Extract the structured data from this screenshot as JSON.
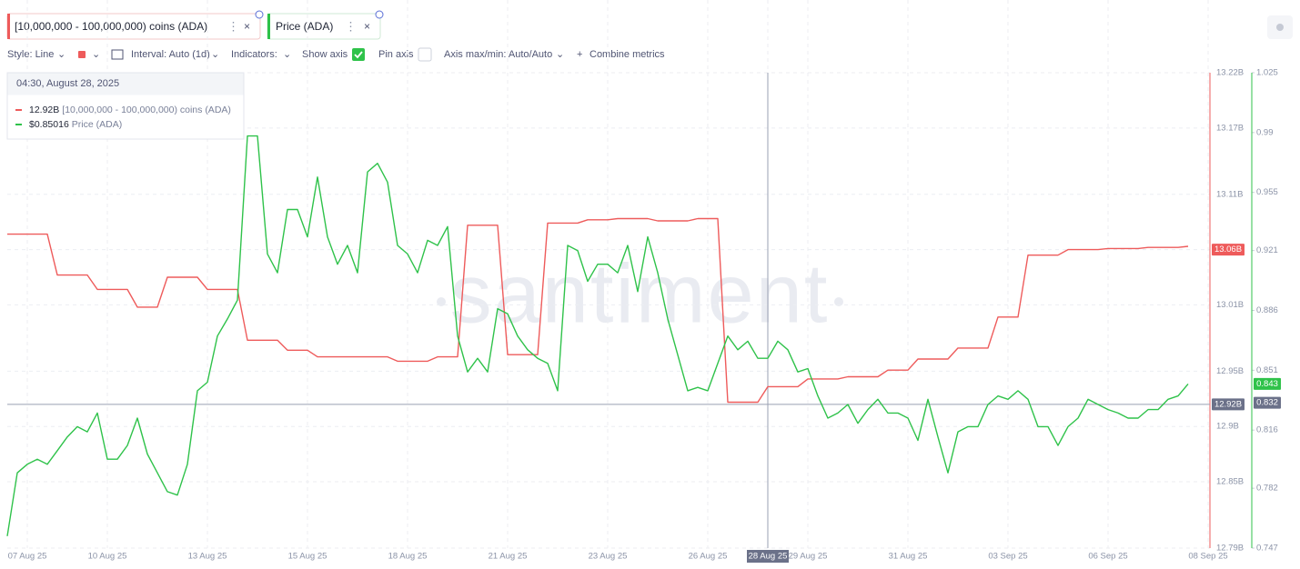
{
  "toolbar": {
    "style": "Style: Line",
    "interval": "Interval: Auto (1d)",
    "indicators": "Indicators:",
    "show_axis": "Show axis",
    "pin_axis": "Pin axis",
    "axis_minmax": "Axis max/min: Auto/Auto",
    "combine": "Combine metrics"
  },
  "chart_data": {
    "type": "line",
    "categories": [
      null,
      null,
      "07 Aug 25",
      null,
      null,
      null,
      null,
      null,
      null,
      null,
      "10 Aug 25",
      null,
      null,
      null,
      null,
      null,
      null,
      null,
      null,
      null,
      "13 Aug 25",
      null,
      null,
      null,
      null,
      null,
      null,
      null,
      null,
      null,
      "15 Aug 25",
      null,
      null,
      null,
      null,
      null,
      null,
      null,
      null,
      null,
      "18 Aug 25",
      null,
      null,
      null,
      null,
      null,
      null,
      null,
      null,
      null,
      "21 Aug 25",
      null,
      null,
      null,
      null,
      null,
      null,
      null,
      null,
      null,
      "23 Aug 25",
      null,
      null,
      null,
      null,
      null,
      null,
      null,
      null,
      null,
      "26 Aug 25",
      null,
      null,
      null,
      null,
      null,
      "28 Aug 25",
      null,
      null,
      null,
      "29 Aug 25",
      null,
      null,
      null,
      null,
      null,
      null,
      null,
      null,
      null,
      "31 Aug 25",
      null,
      null,
      null,
      null,
      null,
      null,
      null,
      null,
      null,
      "03 Sep 25",
      null,
      null,
      null,
      null,
      null,
      null,
      null,
      null,
      null,
      "06 Sep 25",
      null,
      null,
      null,
      null,
      null,
      null,
      null,
      null,
      null,
      "08 Sep 25"
    ],
    "series": [
      {
        "name": "[10,000,000 - 100,000,000) coins (ADA)",
        "color": "#ee5b5b",
        "axis": "y",
        "last_value": {
          "value": 13.06,
          "label": "13.06B"
        },
        "values": [
          13.074,
          13.074,
          13.074,
          13.074,
          13.074,
          13.037,
          13.037,
          13.037,
          13.037,
          13.024,
          13.024,
          13.024,
          13.024,
          13.008,
          13.008,
          13.008,
          13.035,
          13.035,
          13.035,
          13.035,
          13.024,
          13.024,
          13.024,
          13.024,
          12.978,
          12.978,
          12.978,
          12.978,
          12.969,
          12.969,
          12.969,
          12.963,
          12.963,
          12.963,
          12.963,
          12.963,
          12.963,
          12.963,
          12.963,
          12.959,
          12.959,
          12.959,
          12.959,
          12.963,
          12.963,
          12.963,
          13.082,
          13.082,
          13.082,
          13.082,
          12.965,
          12.965,
          12.965,
          12.965,
          13.084,
          13.084,
          13.084,
          13.084,
          13.087,
          13.087,
          13.087,
          13.088,
          13.088,
          13.088,
          13.088,
          13.086,
          13.086,
          13.086,
          13.086,
          13.088,
          13.088,
          13.088,
          12.922,
          12.922,
          12.922,
          12.922,
          12.936,
          12.936,
          12.936,
          12.936,
          12.943,
          12.943,
          12.943,
          12.943,
          12.945,
          12.945,
          12.945,
          12.945,
          12.951,
          12.951,
          12.951,
          12.961,
          12.961,
          12.961,
          12.961,
          12.971,
          12.971,
          12.971,
          12.971,
          12.999,
          12.999,
          12.999,
          13.055,
          13.055,
          13.055,
          13.055,
          13.06,
          13.06,
          13.06,
          13.06,
          13.061,
          13.061,
          13.061,
          13.061,
          13.062,
          13.062,
          13.062,
          13.062,
          13.063,
          null,
          null
        ]
      },
      {
        "name": "Price (ADA)",
        "color": "#2fc24a",
        "axis": "y2",
        "last_value": 0.843,
        "values": [
          0.754,
          0.791,
          0.796,
          0.799,
          0.796,
          0.804,
          0.812,
          0.818,
          0.815,
          0.826,
          0.799,
          0.799,
          0.807,
          0.823,
          0.802,
          0.791,
          0.78,
          0.778,
          0.796,
          0.839,
          0.844,
          0.871,
          0.881,
          0.892,
          0.988,
          0.988,
          0.919,
          0.908,
          0.945,
          0.945,
          0.929,
          0.964,
          0.929,
          0.913,
          0.924,
          0.908,
          0.967,
          0.972,
          0.961,
          0.924,
          0.919,
          0.908,
          0.927,
          0.924,
          0.935,
          0.871,
          0.85,
          0.858,
          0.85,
          0.887,
          0.884,
          0.871,
          0.863,
          0.858,
          0.855,
          0.839,
          0.924,
          0.921,
          0.903,
          0.913,
          0.913,
          0.908,
          0.924,
          0.897,
          0.929,
          0.908,
          0.881,
          0.86,
          0.839,
          0.841,
          0.839,
          0.855,
          0.871,
          0.863,
          0.868,
          0.858,
          0.858,
          0.868,
          0.863,
          0.85,
          0.852,
          0.836,
          0.823,
          0.826,
          0.831,
          0.82,
          0.828,
          0.834,
          0.826,
          0.826,
          0.823,
          0.81,
          0.834,
          0.812,
          0.791,
          0.815,
          0.818,
          0.818,
          0.831,
          0.836,
          0.834,
          0.839,
          0.834,
          0.818,
          0.818,
          0.807,
          0.818,
          0.823,
          0.834,
          0.831,
          0.828,
          0.826,
          0.823,
          0.823,
          0.828,
          0.828,
          0.834,
          0.836,
          0.843,
          null,
          null
        ]
      }
    ],
    "ylim": [
      12.79,
      13.22
    ],
    "yticks": [
      {
        "value": 13.22,
        "label": "13.22B"
      },
      {
        "value": 13.17,
        "label": "13.17B"
      },
      {
        "value": 13.11,
        "label": "13.11B"
      },
      {
        "value": 13.06,
        "label": "13.06B"
      },
      {
        "value": 13.01,
        "label": "13.01B"
      },
      {
        "value": 12.95,
        "label": "12.95B"
      },
      {
        "value": 12.9,
        "label": "12.9B"
      },
      {
        "value": 12.85,
        "label": "12.85B"
      },
      {
        "value": 12.79,
        "label": "12.79B"
      }
    ],
    "y2lim": [
      0.747,
      1.025
    ],
    "y2ticks": [
      1.025,
      0.99,
      0.955,
      0.921,
      0.886,
      0.851,
      0.816,
      0.782,
      0.747
    ],
    "grid": true,
    "watermark": "santiment",
    "crosshair": {
      "category": "28 Aug 25",
      "y": {
        "value": 12.92,
        "label": "12.92B"
      },
      "y2": 0.832
    },
    "tooltip": {
      "time": "04:30, August 28, 2025",
      "rows": [
        "12.92B",
        "$0.85016"
      ]
    }
  }
}
